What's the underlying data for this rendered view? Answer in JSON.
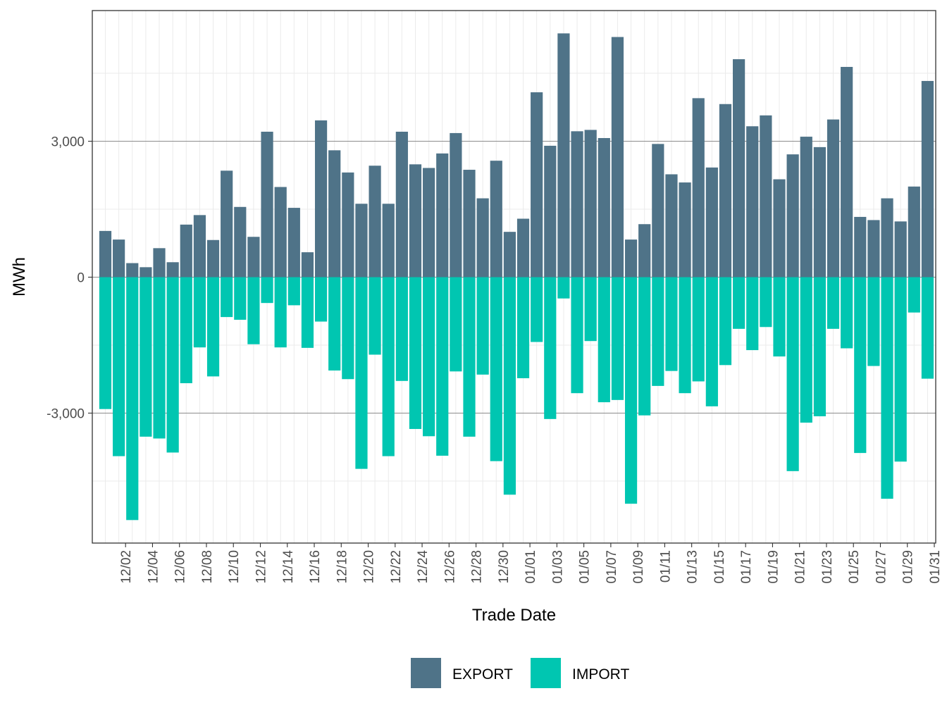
{
  "chart_data": {
    "type": "bar",
    "stacked_diverging": true,
    "xlabel": "Trade Date",
    "ylabel": "MWh",
    "ylim": [
      -5800,
      5600
    ],
    "yticks": [
      -3000,
      0,
      3000
    ],
    "ytick_labels": [
      "-3,000",
      "0",
      "3,000"
    ],
    "legend_position": "bottom",
    "categories": [
      "12/01",
      "12/02",
      "12/03",
      "12/04",
      "12/05",
      "12/06",
      "12/07",
      "12/08",
      "12/09",
      "12/10",
      "12/11",
      "12/12",
      "12/13",
      "12/14",
      "12/15",
      "12/16",
      "12/17",
      "12/18",
      "12/19",
      "12/20",
      "12/21",
      "12/22",
      "12/23",
      "12/24",
      "12/25",
      "12/26",
      "12/27",
      "12/28",
      "12/29",
      "12/30",
      "12/31",
      "01/01",
      "01/02",
      "01/03",
      "01/04",
      "01/05",
      "01/06",
      "01/07",
      "01/08",
      "01/09",
      "01/10",
      "01/11",
      "01/12",
      "01/13",
      "01/14",
      "01/15",
      "01/16",
      "01/17",
      "01/18",
      "01/19",
      "01/20",
      "01/21",
      "01/22",
      "01/23",
      "01/24",
      "01/25",
      "01/26",
      "01/27",
      "01/28",
      "01/29",
      "01/30",
      "01/31"
    ],
    "labeled_categories": [
      "12/02",
      "12/04",
      "12/06",
      "12/08",
      "12/10",
      "12/12",
      "12/14",
      "12/16",
      "12/18",
      "12/20",
      "12/22",
      "12/24",
      "12/26",
      "12/28",
      "12/30",
      "01/01",
      "01/03",
      "01/05",
      "01/07",
      "01/09",
      "01/11",
      "01/13",
      "01/15",
      "01/17",
      "01/19",
      "01/21",
      "01/23",
      "01/25",
      "01/27",
      "01/29",
      "01/31"
    ],
    "series": [
      {
        "name": "EXPORT",
        "color": "#4f7388",
        "values": [
          1020,
          830,
          310,
          220,
          640,
          330,
          1160,
          1370,
          820,
          2350,
          1550,
          890,
          3210,
          1990,
          1530,
          550,
          3460,
          2800,
          2310,
          1620,
          2460,
          1620,
          3210,
          2490,
          2410,
          2730,
          3180,
          2370,
          1740,
          2570,
          1000,
          1290,
          4080,
          2900,
          5380,
          3220,
          3250,
          3070,
          5300,
          830,
          1170,
          2940,
          2270,
          2090,
          3950,
          2420,
          3820,
          4810,
          3330,
          3570,
          2160,
          2710,
          3100,
          2870,
          3480,
          4640,
          1330,
          1260,
          1740,
          1230,
          2000,
          4330
        ]
      },
      {
        "name": "IMPORT",
        "color": "#00c6b1",
        "values": [
          -2910,
          -3950,
          -5360,
          -3520,
          -3560,
          -3870,
          -2340,
          -1550,
          -2190,
          -880,
          -940,
          -1480,
          -570,
          -1550,
          -620,
          -1560,
          -980,
          -2060,
          -2250,
          -4230,
          -1710,
          -3950,
          -2290,
          -3350,
          -3510,
          -3940,
          -2080,
          -3520,
          -2150,
          -4060,
          -4800,
          -2230,
          -1430,
          -3130,
          -470,
          -2560,
          -1410,
          -2760,
          -2710,
          -5000,
          -3050,
          -2400,
          -2070,
          -2560,
          -2300,
          -2850,
          -1940,
          -1140,
          -1610,
          -1100,
          -1750,
          -4280,
          -3210,
          -3070,
          -1140,
          -1570,
          -3880,
          -1960,
          -4890,
          -4070,
          -780,
          -2240
        ]
      }
    ]
  },
  "legend": {
    "items": [
      {
        "label": "EXPORT",
        "color": "#4f7388"
      },
      {
        "label": "IMPORT",
        "color": "#00c6b1"
      }
    ]
  }
}
